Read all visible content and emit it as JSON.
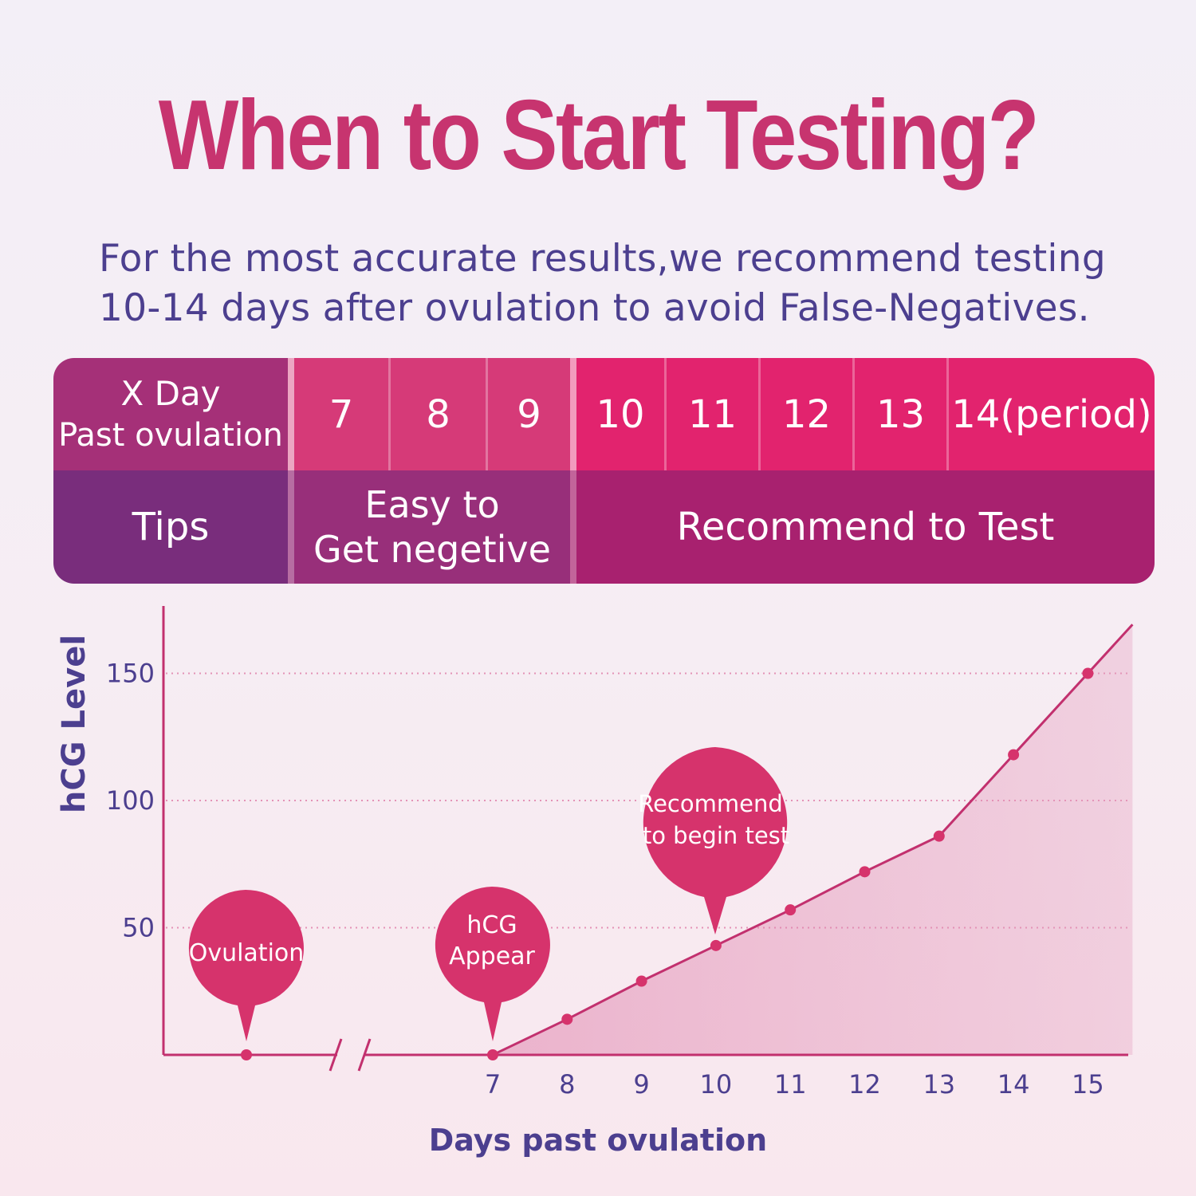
{
  "headline": "When to Start Testing?",
  "subtitle": {
    "line1": "For the most accurate results,we recommend testing",
    "line2": "10-14 days after ovulation to avoid False-Negatives."
  },
  "table": {
    "header_label_line1": "X Day",
    "header_label_line2": "Past ovulation",
    "days": [
      "7",
      "8",
      "9",
      "10",
      "11",
      "12",
      "13",
      "14(period)"
    ],
    "tips_label": "Tips",
    "tips_early_line1": "Easy to",
    "tips_early_line2": "Get negetive",
    "tips_recommend": "Recommend to Test"
  },
  "colors": {
    "accent": "#c7346f",
    "bubble": "#d6336c",
    "navy": "#4c3f8f",
    "line": "#c2306e",
    "grid": "#e493b6"
  },
  "chart_data": {
    "type": "area",
    "xlabel": "Days past ovulation",
    "ylabel": "hCG Level",
    "yticks": [
      50,
      100,
      150
    ],
    "ylim": [
      0,
      175
    ],
    "x_ticks": [
      "7",
      "8",
      "9",
      "10",
      "11",
      "12",
      "13",
      "14",
      "15"
    ],
    "grid": "dotted horizontal at y ticks",
    "series": [
      {
        "name": "hCG Level",
        "points": [
          {
            "x": 7,
            "y": 0
          },
          {
            "x": 8,
            "y": 14
          },
          {
            "x": 9,
            "y": 29
          },
          {
            "x": 10,
            "y": 43
          },
          {
            "x": 11,
            "y": 57
          },
          {
            "x": 12,
            "y": 72
          },
          {
            "x": 13,
            "y": 86
          },
          {
            "x": 14,
            "y": 118
          },
          {
            "x": 15,
            "y": 150
          }
        ]
      }
    ],
    "ovulation_marker": {
      "label": "Ovulation",
      "y": 0
    },
    "annotations": [
      {
        "id": "ovulation",
        "text": [
          "Ovulation"
        ]
      },
      {
        "id": "hcg-appear",
        "x": 7,
        "text": [
          "hCG",
          "Appear"
        ]
      },
      {
        "id": "recommend",
        "x": 10,
        "text": [
          "Recommend",
          "to begin test"
        ]
      }
    ]
  }
}
